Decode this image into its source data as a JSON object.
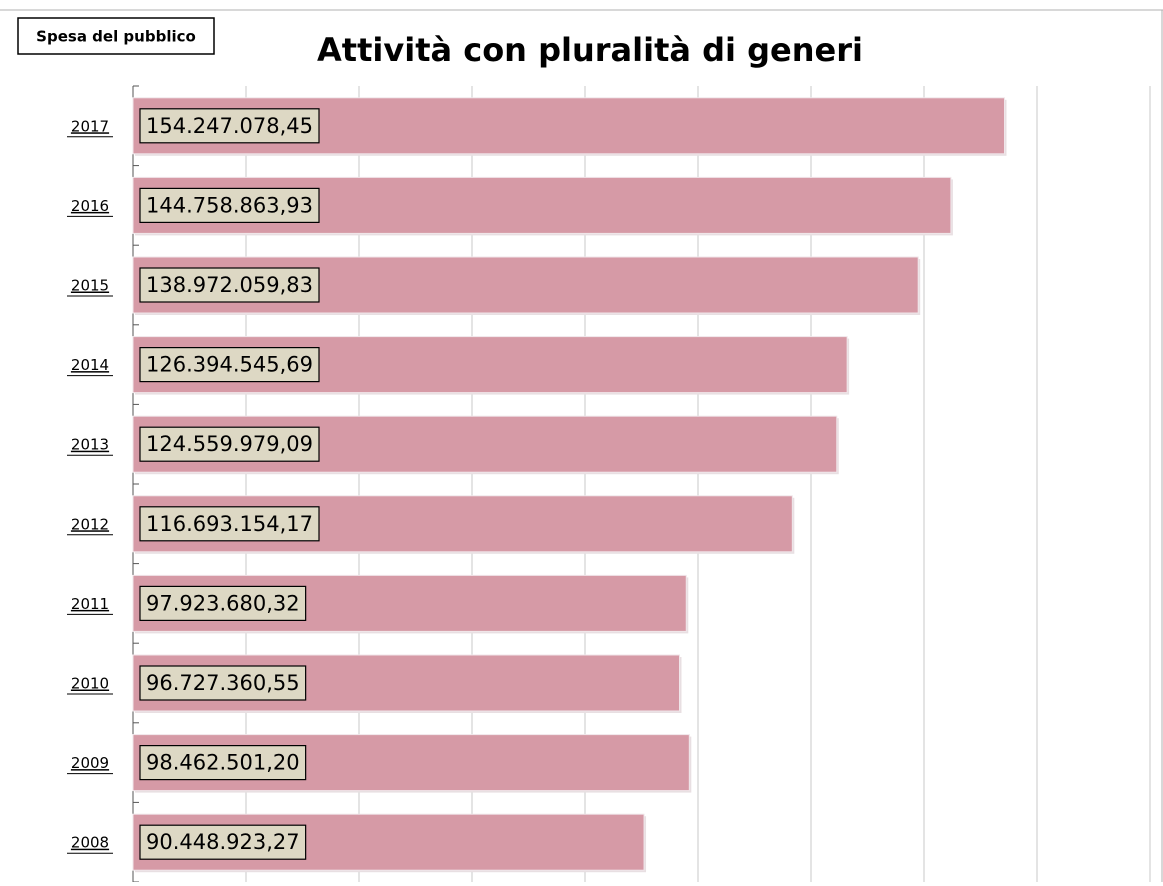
{
  "chart_data": {
    "type": "bar",
    "orientation": "horizontal",
    "title": "Attività con pluralità di generi",
    "label": "Spesa del pubblico",
    "categories": [
      "2017",
      "2016",
      "2015",
      "2014",
      "2013",
      "2012",
      "2011",
      "2010",
      "2009",
      "2008"
    ],
    "values": [
      154247078.45,
      144758863.93,
      138972059.83,
      126394545.69,
      124559979.09,
      116693154.17,
      97923680.32,
      96727360.55,
      98462501.2,
      90448923.27
    ],
    "value_labels": [
      "154.247.078,45",
      "144.758.863,93",
      "138.972.059,83",
      "126.394.545,69",
      "124.559.979,09",
      "116.693.154,17",
      "97.923.680,32",
      "96.727.360,55",
      "98.462.501,20",
      "90.448.923,27"
    ],
    "color": "#d69aa6",
    "xlim": [
      0,
      180000000
    ],
    "xticks": [
      0,
      20000000,
      40000000,
      60000000,
      80000000,
      100000000,
      120000000,
      140000000,
      160000000,
      180000000
    ],
    "show_tick_labels": false,
    "grid": true
  }
}
